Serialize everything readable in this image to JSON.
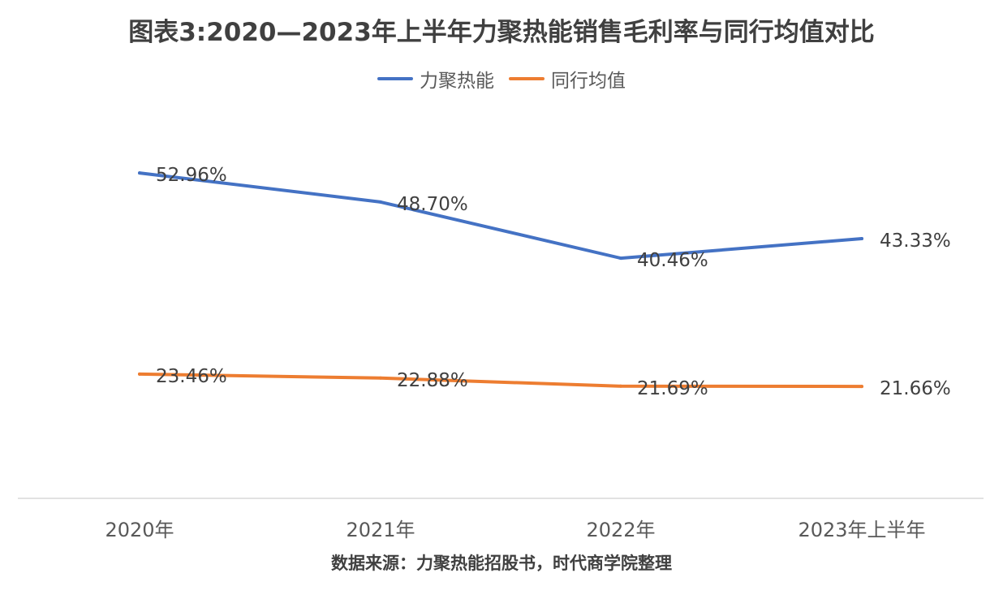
{
  "chart_data": {
    "type": "line",
    "title": "图表3:2020—2023年上半年力聚热能销售毛利率与同行均值对比",
    "categories": [
      "2020年",
      "2021年",
      "2022年",
      "2023年上半年"
    ],
    "series": [
      {
        "name": "力聚热能",
        "color": "#4472C4",
        "values": [
          52.96,
          48.7,
          40.46,
          43.33
        ],
        "labels": [
          "52.96%",
          "48.70%",
          "40.46%",
          "43.33%"
        ]
      },
      {
        "name": "同行均值",
        "color": "#ED7D31",
        "values": [
          23.46,
          22.88,
          21.69,
          21.66
        ],
        "labels": [
          "23.46%",
          "22.88%",
          "21.69%",
          "21.66%"
        ]
      }
    ],
    "legend_position": "top",
    "grid": false,
    "source": "数据来源：力聚热能招股书，时代商学院整理"
  }
}
